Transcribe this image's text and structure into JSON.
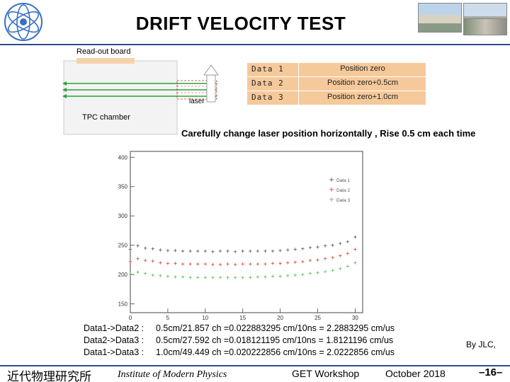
{
  "slide": {
    "title": "DRIFT VELOCITY TEST",
    "caption": "Carefully change laser position horizontally , Rise 0.5 cm each time",
    "byline": "By JLC,",
    "page_number": "–16–"
  },
  "diagram": {
    "readout_label": "Read-out board",
    "chamber_label": "TPC chamber",
    "laser_label": "laser",
    "beam_color": "#2aa33a",
    "board_color": "#f6d2a8",
    "chamber_color": "#f3f3f3",
    "legend": [
      {
        "name": "Data  1",
        "position": "Position zero"
      },
      {
        "name": "Data  2",
        "position": "Position zero+0.5cm"
      },
      {
        "name": "Data  3",
        "position": "Position zero+1.0cm"
      }
    ]
  },
  "equations": [
    {
      "lhs": "Data1->Data2 :",
      "rhs": "0.5cm/21.857 ch =0.022883295 cm/10ns = 2.2883295 cm/us"
    },
    {
      "lhs": "Data2->Data3 :",
      "rhs": "0.5cm/27.592 ch =0.018121195 cm/10ns = 1.8121196 cm/us"
    },
    {
      "lhs": "Data1->Data3 :",
      "rhs": "1.0cm/49.449 ch =0.020222856 cm/10ns = 2.0222856 cm/us"
    }
  ],
  "footer": {
    "institute_cn": "近代物理研究所",
    "institute_en": "Institute of Modern Physics",
    "workshop": "GET Workshop",
    "date": "October 2018"
  },
  "chart_data": {
    "type": "scatter",
    "x_ticks": [
      0,
      5,
      10,
      15,
      20,
      25,
      30
    ],
    "y_ticks": [
      150,
      200,
      250,
      300,
      350,
      400
    ],
    "xlim": [
      0,
      31
    ],
    "ylim": [
      135,
      410
    ],
    "legend_placement": "top-right",
    "series": [
      {
        "name": "Data 1",
        "color": "#555555",
        "x": [
          0,
          1,
          2,
          3,
          4,
          5,
          6,
          7,
          8,
          9,
          10,
          11,
          12,
          13,
          14,
          15,
          16,
          17,
          18,
          19,
          20,
          21,
          22,
          23,
          24,
          25,
          26,
          27,
          28,
          29,
          30
        ],
        "y": [
          243,
          249,
          245,
          244,
          242,
          241,
          241,
          240,
          240,
          240,
          240,
          239,
          240,
          240,
          239,
          240,
          240,
          240,
          240,
          240,
          241,
          242,
          243,
          244,
          246,
          247,
          249,
          250,
          253,
          256,
          264
        ]
      },
      {
        "name": "Data 2",
        "color": "#d9402f",
        "x": [
          0,
          1,
          2,
          3,
          4,
          5,
          6,
          7,
          8,
          9,
          10,
          11,
          12,
          13,
          14,
          15,
          16,
          17,
          18,
          19,
          20,
          21,
          22,
          23,
          24,
          25,
          26,
          27,
          28,
          29,
          30
        ],
        "y": [
          222,
          227,
          224,
          223,
          220,
          219,
          219,
          218,
          218,
          218,
          218,
          217,
          217,
          218,
          217,
          218,
          218,
          218,
          218,
          219,
          219,
          220,
          221,
          222,
          224,
          225,
          227,
          229,
          232,
          236,
          243
        ]
      },
      {
        "name": "Data 3",
        "color": "#4cc24c",
        "x": [
          0,
          1,
          2,
          3,
          4,
          5,
          6,
          7,
          8,
          9,
          10,
          11,
          12,
          13,
          14,
          15,
          16,
          17,
          18,
          19,
          20,
          21,
          22,
          23,
          24,
          25,
          26,
          27,
          28,
          29,
          30
        ],
        "y": [
          201,
          204,
          202,
          199,
          198,
          197,
          196,
          196,
          195,
          195,
          195,
          195,
          195,
          195,
          195,
          195,
          195,
          196,
          196,
          197,
          197,
          198,
          199,
          200,
          202,
          203,
          205,
          207,
          210,
          214,
          220
        ]
      }
    ]
  }
}
